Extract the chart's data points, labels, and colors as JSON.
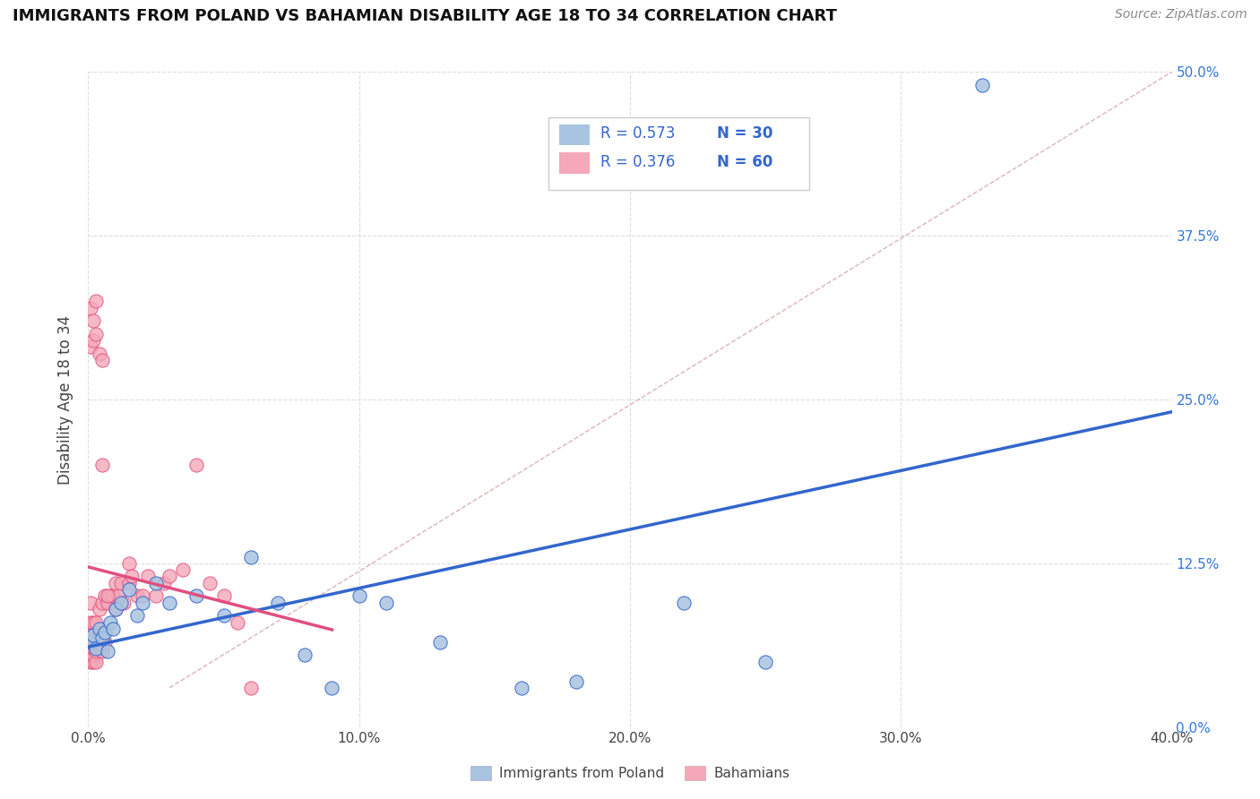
{
  "title": "IMMIGRANTS FROM POLAND VS BAHAMIAN DISABILITY AGE 18 TO 34 CORRELATION CHART",
  "source": "Source: ZipAtlas.com",
  "ylabel": "Disability Age 18 to 34",
  "x_ticks": [
    0.0,
    0.1,
    0.2,
    0.3,
    0.4
  ],
  "y_ticks": [
    0.0,
    0.125,
    0.25,
    0.375,
    0.5
  ],
  "y_tick_labels": [
    "0.0%",
    "12.5%",
    "25.0%",
    "37.5%",
    "50.0%"
  ],
  "xlim": [
    0.0,
    0.4
  ],
  "ylim": [
    0.0,
    0.5
  ],
  "legend_entries": [
    {
      "R": "R = 0.573",
      "N": "N = 30",
      "color": "#a8c4e0"
    },
    {
      "R": "R = 0.376",
      "N": "N = 60",
      "color": "#f4a8b8"
    }
  ],
  "bottom_legend": [
    "Immigrants from Poland",
    "Bahamians"
  ],
  "scatter_color_1": "#a8c4e0",
  "scatter_color_2": "#f4a8b8",
  "line_color_1": "#3366cc",
  "line_color_2": "#e05080",
  "dashed_line_color": "#ccaaaa",
  "background_color": "#ffffff",
  "poland_x": [
    0.001,
    0.002,
    0.003,
    0.004,
    0.005,
    0.006,
    0.007,
    0.008,
    0.009,
    0.01,
    0.012,
    0.015,
    0.018,
    0.02,
    0.025,
    0.03,
    0.04,
    0.05,
    0.06,
    0.07,
    0.08,
    0.09,
    0.1,
    0.11,
    0.13,
    0.16,
    0.18,
    0.22,
    0.25,
    0.33
  ],
  "poland_y": [
    0.065,
    0.07,
    0.06,
    0.075,
    0.068,
    0.072,
    0.058,
    0.08,
    0.075,
    0.09,
    0.095,
    0.105,
    0.085,
    0.095,
    0.11,
    0.095,
    0.1,
    0.085,
    0.13,
    0.095,
    0.055,
    0.03,
    0.1,
    0.095,
    0.065,
    0.03,
    0.035,
    0.095,
    0.05,
    0.49
  ],
  "bahamian_x": [
    0.001,
    0.001,
    0.001,
    0.001,
    0.001,
    0.001,
    0.001,
    0.001,
    0.001,
    0.001,
    0.002,
    0.002,
    0.002,
    0.002,
    0.002,
    0.003,
    0.003,
    0.003,
    0.003,
    0.004,
    0.004,
    0.004,
    0.005,
    0.005,
    0.005,
    0.006,
    0.006,
    0.007,
    0.008,
    0.009,
    0.01,
    0.01,
    0.011,
    0.012,
    0.013,
    0.015,
    0.015,
    0.016,
    0.018,
    0.02,
    0.022,
    0.025,
    0.028,
    0.03,
    0.035,
    0.04,
    0.045,
    0.05,
    0.055,
    0.06,
    0.001,
    0.001,
    0.002,
    0.002,
    0.003,
    0.003,
    0.004,
    0.005,
    0.005,
    0.007
  ],
  "bahamian_y": [
    0.05,
    0.055,
    0.058,
    0.06,
    0.063,
    0.066,
    0.07,
    0.075,
    0.08,
    0.095,
    0.05,
    0.055,
    0.06,
    0.07,
    0.08,
    0.05,
    0.058,
    0.065,
    0.08,
    0.06,
    0.07,
    0.09,
    0.058,
    0.07,
    0.095,
    0.065,
    0.1,
    0.095,
    0.1,
    0.1,
    0.09,
    0.11,
    0.1,
    0.11,
    0.095,
    0.11,
    0.125,
    0.115,
    0.1,
    0.1,
    0.115,
    0.1,
    0.11,
    0.115,
    0.12,
    0.2,
    0.11,
    0.1,
    0.08,
    0.03,
    0.29,
    0.32,
    0.295,
    0.31,
    0.3,
    0.325,
    0.285,
    0.2,
    0.28,
    0.1
  ]
}
